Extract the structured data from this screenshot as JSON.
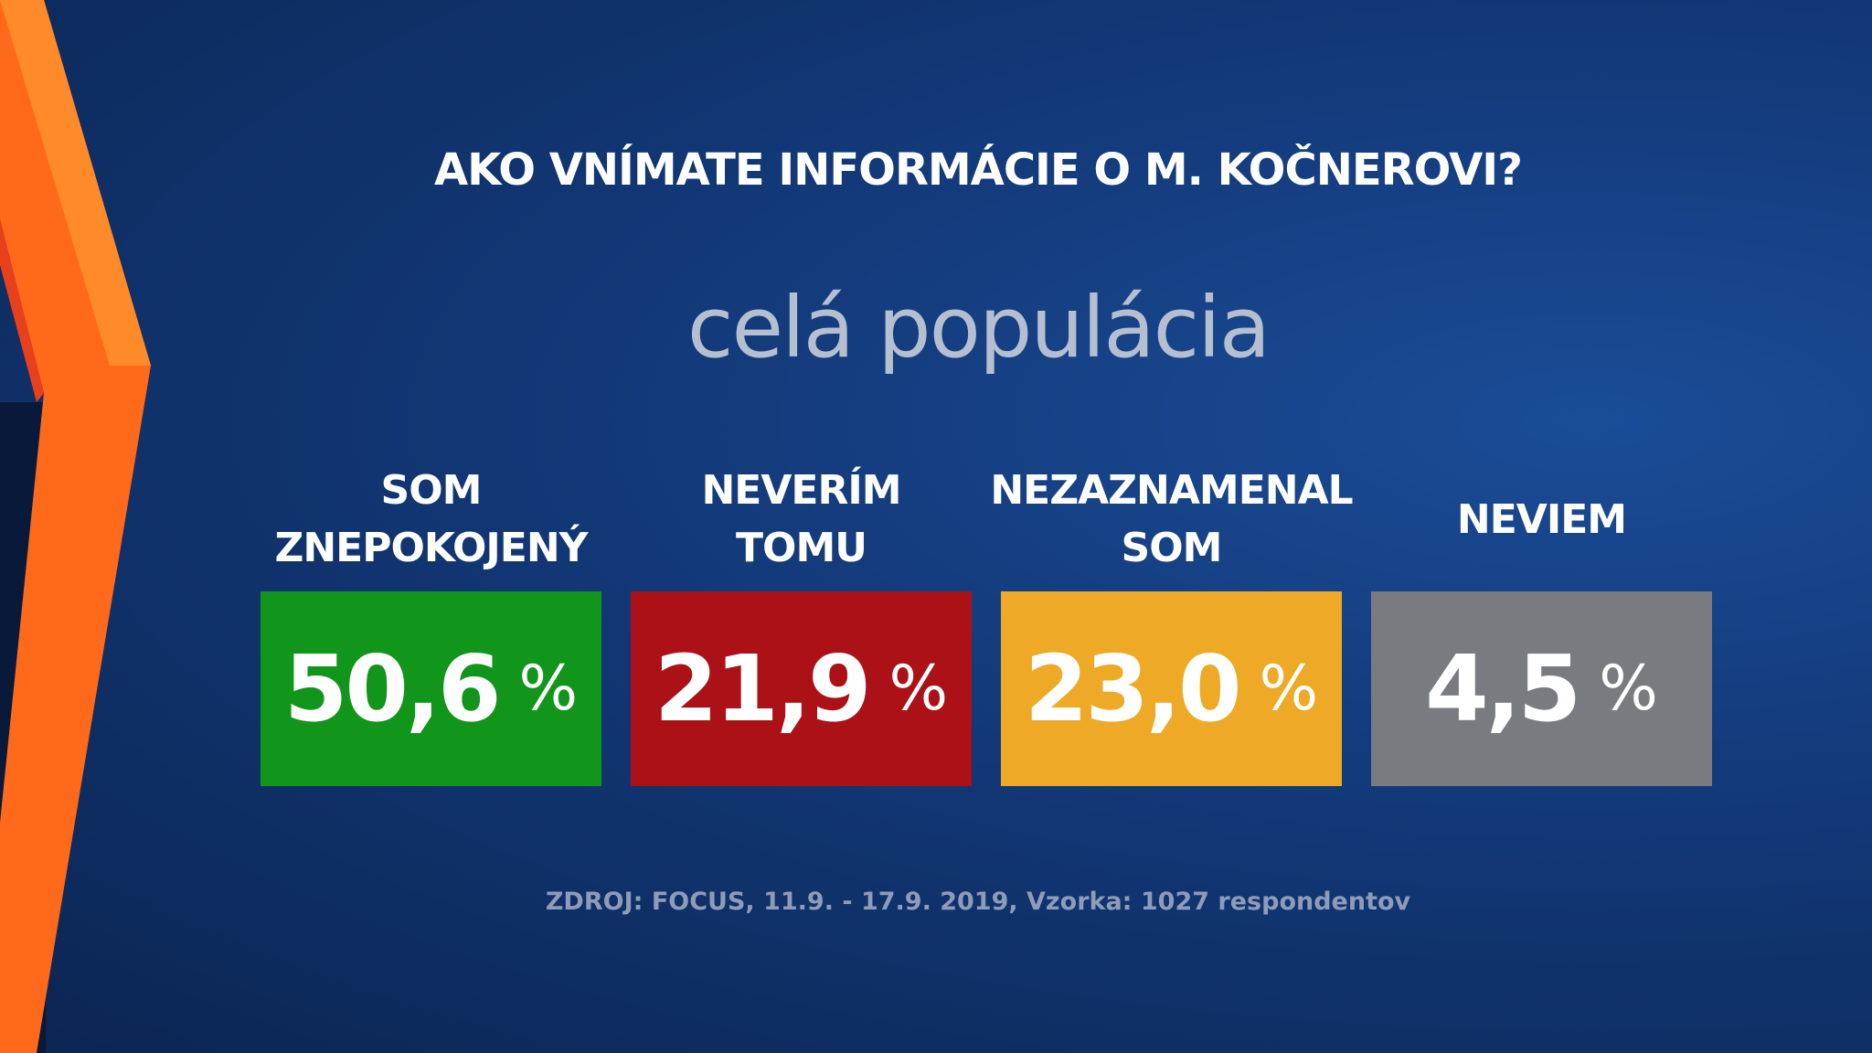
{
  "header": {
    "title": "AKO VNÍMATE INFORMÁCIE O M. KOČNEROVI?",
    "subtitle": "celá populácia"
  },
  "unit": "%",
  "items": [
    {
      "label": [
        "SOM",
        "ZNEPOKOJENÝ"
      ],
      "value": "50,6",
      "color": "#12951b"
    },
    {
      "label": [
        "NEVERÍM",
        "TOMU"
      ],
      "value": "21,9",
      "color": "#ab1117"
    },
    {
      "label": [
        "NEZAZNAMENAL",
        "SOM"
      ],
      "value": "23,0",
      "color": "#eeaa27"
    },
    {
      "label": [
        "NEVIEM"
      ],
      "value": "4,5",
      "color": "#797b80"
    }
  ],
  "footer": {
    "source": "ZDROJ: FOCUS, 11.9. - 17.9. 2019, Vzorka: 1027 respondentov"
  }
}
